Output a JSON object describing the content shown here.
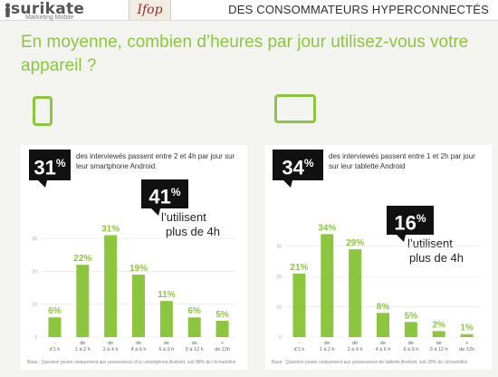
{
  "header": {
    "brand_name": "surikate",
    "brand_sub": "Marketing Mobile",
    "partner_logo_text": "Ifop",
    "section_title": "DES CONSOMMATEURS HYPERCONNECTÉS"
  },
  "question": "En moyenne, combien d’heures par jour utilisez-vous votre appareil ?",
  "colors": {
    "accent": "#8cc63f",
    "callout_bg": "#111111"
  },
  "left_panel": {
    "icon": "smartphone-icon",
    "headline_value": "31",
    "headline_unit": "%",
    "headline_text": "des interviewés passent entre 2 et 4h par jour sur leur smartphone Android.",
    "callout_value": "41",
    "callout_unit": "%",
    "callout_text_1": "l’utilisent",
    "callout_text_2": "plus de 4h",
    "footnote": "Base : Question posée uniquement aux possesseurs d’un smartphone Android, soit 88% de l’échantillon"
  },
  "right_panel": {
    "icon": "tablet-icon",
    "headline_value": "34",
    "headline_unit": "%",
    "headline_text": "des interviewés passent entre 1 et 2h par jour sur leur tablette Android",
    "callout_value": "16",
    "callout_unit": "%",
    "callout_text_1": "l’utilisent",
    "callout_text_2": "plus de 4h",
    "footnote": "Base : Question posée uniquement aux possesseurs de tablette Android, soit 28% de l’échantillon"
  },
  "chart_data": [
    {
      "type": "bar",
      "categories": [
        "- d'1 h",
        "de 1 à 2 h",
        "de 2 à 4 h",
        "de 4 à 6 h",
        "de 6 à 9 h",
        "de 9 à 12 h",
        "+ de 12h"
      ],
      "tick_lines": [
        [
          "-",
          "d'1 h"
        ],
        [
          "de",
          "1 à 2 h"
        ],
        [
          "de",
          "2 à 4 h"
        ],
        [
          "de",
          "4 à 6 h"
        ],
        [
          "de",
          "6 à 9 h"
        ],
        [
          "de",
          "9 à 12 h"
        ],
        [
          "+",
          "de 12h"
        ]
      ],
      "values": [
        6,
        22,
        31,
        19,
        11,
        6,
        5
      ],
      "value_labels": [
        "6%",
        "22%",
        "31%",
        "19%",
        "11%",
        "6%",
        "5%"
      ],
      "y_ticks": [
        0,
        10,
        20,
        30
      ],
      "ylim": [
        0,
        35
      ],
      "grid": true,
      "color": "#8cc63f"
    },
    {
      "type": "bar",
      "categories": [
        "- d'1 h",
        "de 1 à 2 h",
        "de 2 à 4 h",
        "de 4 à 6 h",
        "de 6 à 9 h",
        "de 9 à 12 h",
        "+ de 12h"
      ],
      "tick_lines": [
        [
          "-",
          "d'1 h"
        ],
        [
          "de",
          "1 à 2 h"
        ],
        [
          "de",
          "2 à 4 h"
        ],
        [
          "de",
          "4 à 6 h"
        ],
        [
          "de",
          "6 à 9 h"
        ],
        [
          "de",
          "9 à 12 h"
        ],
        [
          "+",
          "de 12h"
        ]
      ],
      "values": [
        21,
        34,
        29,
        8,
        5,
        2,
        1
      ],
      "value_labels": [
        "21%",
        "34%",
        "29%",
        "8%",
        "5%",
        "2%",
        "1%"
      ],
      "y_ticks": [
        0,
        10,
        20,
        30
      ],
      "ylim": [
        0,
        38
      ],
      "grid": true,
      "color": "#8cc63f"
    }
  ]
}
